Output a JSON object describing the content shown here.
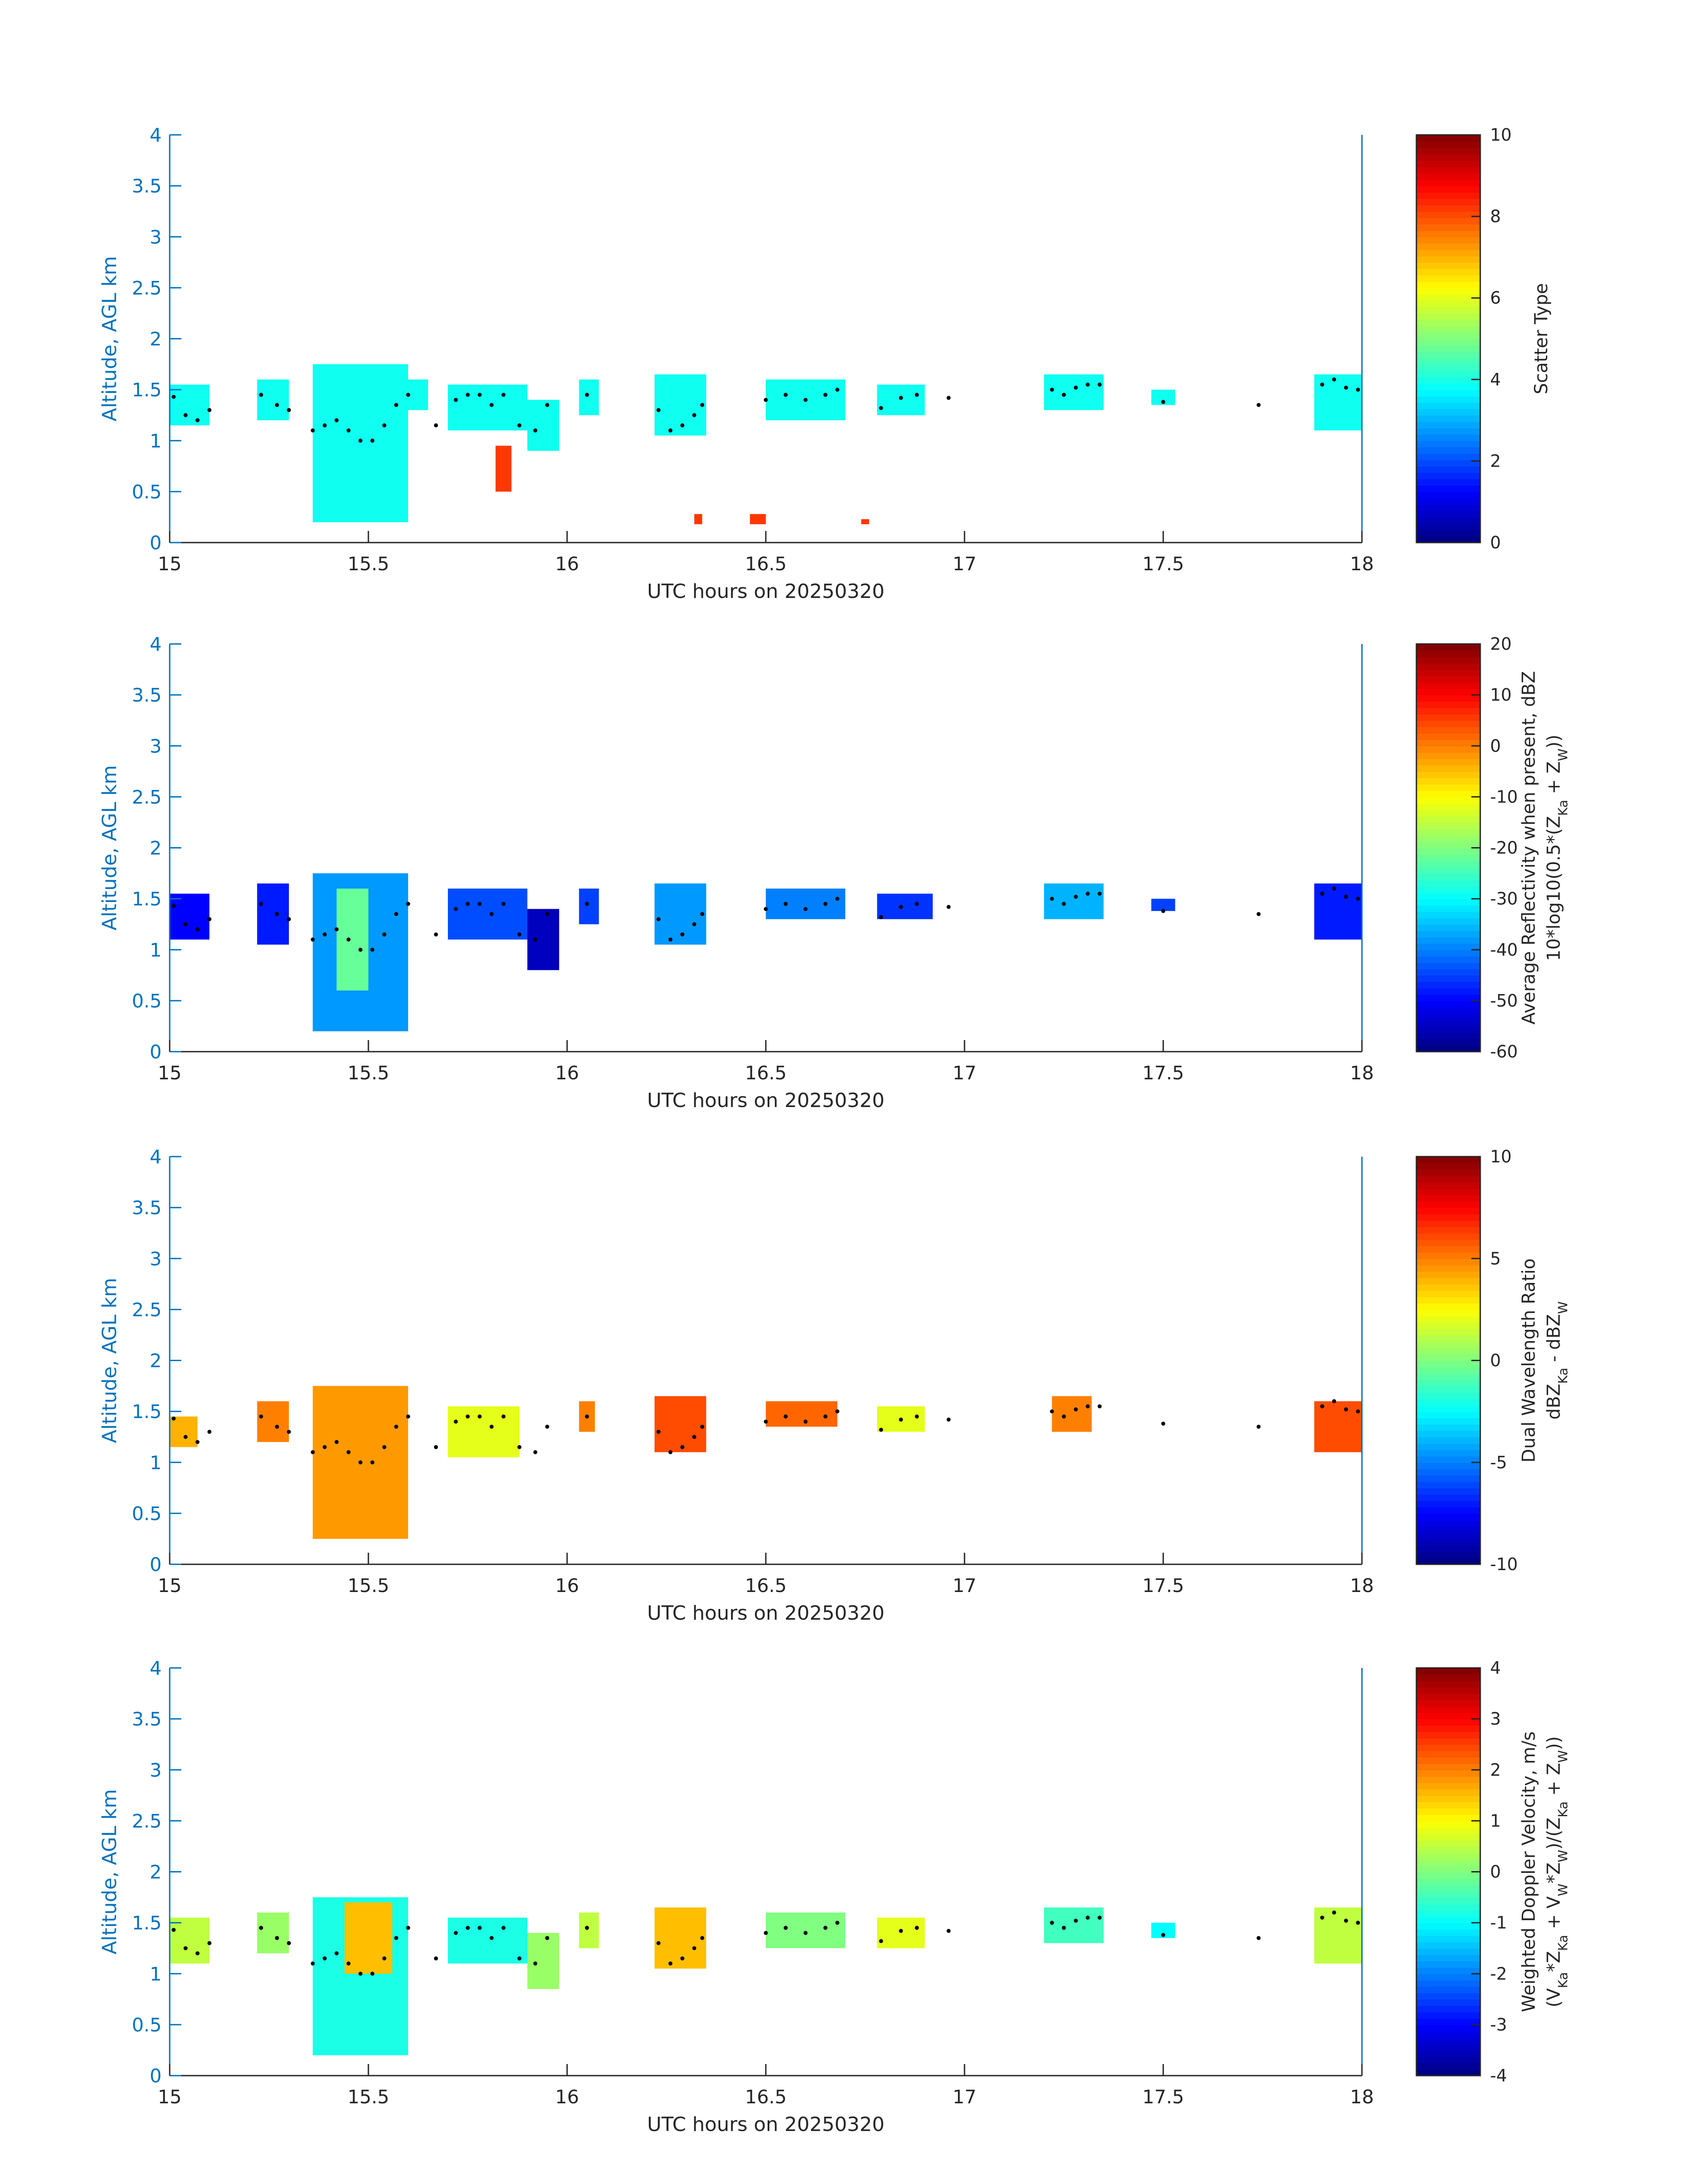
{
  "figure_note": "Four stacked radar time-height panels with colorbars",
  "chart_data": [
    {
      "type": "heatmap",
      "id": "scatter",
      "xlabel": "UTC hours on 20250320",
      "ylabel": "Altitude, AGL km",
      "xlim": [
        15,
        18
      ],
      "ylim": [
        0,
        4
      ],
      "xticks": [
        "15",
        "15.5",
        "16",
        "16.5",
        "17",
        "17.5",
        "18"
      ],
      "yticks": [
        "0",
        "0.5",
        "1",
        "1.5",
        "2",
        "2.5",
        "3",
        "3.5",
        "4"
      ],
      "colorbar": {
        "label_lines": [
          "Scatter Type"
        ],
        "min": 0,
        "max": 10,
        "ticks": [
          "0",
          "2",
          "4",
          "6",
          "8",
          "10"
        ]
      },
      "cells": [
        {
          "t0": 15.0,
          "t1": 15.1,
          "z0": 1.15,
          "z1": 1.55,
          "v": 3.9
        },
        {
          "t0": 15.22,
          "t1": 15.3,
          "z0": 1.2,
          "z1": 1.6,
          "v": 3.9
        },
        {
          "t0": 15.36,
          "t1": 15.6,
          "z0": 0.2,
          "z1": 1.75,
          "v": 3.9
        },
        {
          "t0": 15.6,
          "t1": 15.65,
          "z0": 1.3,
          "z1": 1.6,
          "v": 3.9
        },
        {
          "t0": 15.7,
          "t1": 15.9,
          "z0": 1.1,
          "z1": 1.55,
          "v": 3.9
        },
        {
          "t0": 15.9,
          "t1": 15.98,
          "z0": 0.9,
          "z1": 1.4,
          "v": 3.9
        },
        {
          "t0": 16.03,
          "t1": 16.08,
          "z0": 1.25,
          "z1": 1.6,
          "v": 3.9
        },
        {
          "t0": 16.22,
          "t1": 16.35,
          "z0": 1.05,
          "z1": 1.65,
          "v": 3.9
        },
        {
          "t0": 16.5,
          "t1": 16.7,
          "z0": 1.2,
          "z1": 1.6,
          "v": 3.9
        },
        {
          "t0": 16.78,
          "t1": 16.9,
          "z0": 1.25,
          "z1": 1.55,
          "v": 3.9
        },
        {
          "t0": 17.2,
          "t1": 17.35,
          "z0": 1.3,
          "z1": 1.65,
          "v": 3.9
        },
        {
          "t0": 17.47,
          "t1": 17.53,
          "z0": 1.35,
          "z1": 1.5,
          "v": 3.9
        },
        {
          "t0": 17.88,
          "t1": 18.0,
          "z0": 1.1,
          "z1": 1.65,
          "v": 3.9
        },
        {
          "t0": 15.82,
          "t1": 15.86,
          "z0": 0.5,
          "z1": 0.95,
          "v": 8.2
        },
        {
          "t0": 16.32,
          "t1": 16.34,
          "z0": 0.18,
          "z1": 0.28,
          "v": 8.2
        },
        {
          "t0": 16.46,
          "t1": 16.5,
          "z0": 0.18,
          "z1": 0.28,
          "v": 8.2
        },
        {
          "t0": 16.74,
          "t1": 16.76,
          "z0": 0.18,
          "z1": 0.23,
          "v": 8.2
        }
      ]
    },
    {
      "type": "heatmap",
      "id": "reflectivity",
      "xlabel": "UTC hours on 20250320",
      "ylabel": "Altitude, AGL km",
      "xlim": [
        15,
        18
      ],
      "ylim": [
        0,
        4
      ],
      "xticks": [
        "15",
        "15.5",
        "16",
        "16.5",
        "17",
        "17.5",
        "18"
      ],
      "yticks": [
        "0",
        "0.5",
        "1",
        "1.5",
        "2",
        "2.5",
        "3",
        "3.5",
        "4"
      ],
      "colorbar": {
        "label_lines": [
          "Average Reflectivity when present, dBZ",
          "10*log10(0.5*(Z_Ka + Z_W))"
        ],
        "min": -60,
        "max": 20,
        "ticks": [
          "-60",
          "-50",
          "-40",
          "-30",
          "-20",
          "-10",
          "0",
          "10",
          "20"
        ]
      },
      "cells": [
        {
          "t0": 15.0,
          "t1": 15.1,
          "z0": 1.1,
          "z1": 1.55,
          "v": -50
        },
        {
          "t0": 15.22,
          "t1": 15.3,
          "z0": 1.05,
          "z1": 1.65,
          "v": -48
        },
        {
          "t0": 15.36,
          "t1": 15.6,
          "z0": 0.2,
          "z1": 1.75,
          "v": -38
        },
        {
          "t0": 15.42,
          "t1": 15.5,
          "z0": 0.6,
          "z1": 1.6,
          "v": -22
        },
        {
          "t0": 15.7,
          "t1": 15.9,
          "z0": 1.1,
          "z1": 1.6,
          "v": -44
        },
        {
          "t0": 15.9,
          "t1": 15.98,
          "z0": 0.8,
          "z1": 1.4,
          "v": -55
        },
        {
          "t0": 16.03,
          "t1": 16.08,
          "z0": 1.25,
          "z1": 1.6,
          "v": -45
        },
        {
          "t0": 16.22,
          "t1": 16.35,
          "z0": 1.05,
          "z1": 1.65,
          "v": -38
        },
        {
          "t0": 16.5,
          "t1": 16.7,
          "z0": 1.3,
          "z1": 1.6,
          "v": -40
        },
        {
          "t0": 16.78,
          "t1": 16.92,
          "z0": 1.3,
          "z1": 1.55,
          "v": -46
        },
        {
          "t0": 17.2,
          "t1": 17.35,
          "z0": 1.3,
          "z1": 1.65,
          "v": -36
        },
        {
          "t0": 17.47,
          "t1": 17.53,
          "z0": 1.38,
          "z1": 1.5,
          "v": -45
        },
        {
          "t0": 17.88,
          "t1": 18.0,
          "z0": 1.1,
          "z1": 1.65,
          "v": -48
        }
      ]
    },
    {
      "type": "heatmap",
      "id": "dwr",
      "xlabel": "UTC hours on 20250320",
      "ylabel": "Altitude, AGL km",
      "xlim": [
        15,
        18
      ],
      "ylim": [
        0,
        4
      ],
      "xticks": [
        "15",
        "15.5",
        "16",
        "16.5",
        "17",
        "17.5",
        "18"
      ],
      "yticks": [
        "0",
        "0.5",
        "1",
        "1.5",
        "2",
        "2.5",
        "3",
        "3.5",
        "4"
      ],
      "colorbar": {
        "label_lines": [
          "Dual Wavelength Ratio",
          "dBZ_Ka - dBZ_W"
        ],
        "min": -10,
        "max": 10,
        "ticks": [
          "-10",
          "-5",
          "0",
          "5",
          "10"
        ]
      },
      "cells": [
        {
          "t0": 15.0,
          "t1": 15.07,
          "z0": 1.15,
          "z1": 1.45,
          "v": 4
        },
        {
          "t0": 15.22,
          "t1": 15.3,
          "z0": 1.2,
          "z1": 1.6,
          "v": 5
        },
        {
          "t0": 15.36,
          "t1": 15.6,
          "z0": 0.25,
          "z1": 1.75,
          "v": 4.5
        },
        {
          "t0": 15.7,
          "t1": 15.88,
          "z0": 1.05,
          "z1": 1.55,
          "v": 2
        },
        {
          "t0": 16.03,
          "t1": 16.07,
          "z0": 1.3,
          "z1": 1.6,
          "v": 5
        },
        {
          "t0": 16.22,
          "t1": 16.35,
          "z0": 1.1,
          "z1": 1.65,
          "v": 6
        },
        {
          "t0": 16.5,
          "t1": 16.68,
          "z0": 1.35,
          "z1": 1.6,
          "v": 5.5
        },
        {
          "t0": 16.78,
          "t1": 16.9,
          "z0": 1.3,
          "z1": 1.55,
          "v": 2
        },
        {
          "t0": 17.22,
          "t1": 17.32,
          "z0": 1.3,
          "z1": 1.65,
          "v": 5
        },
        {
          "t0": 17.88,
          "t1": 18.0,
          "z0": 1.1,
          "z1": 1.6,
          "v": 6
        }
      ]
    },
    {
      "type": "heatmap",
      "id": "doppler",
      "xlabel": "UTC hours on 20250320",
      "ylabel": "Altitude, AGL km",
      "xlim": [
        15,
        18
      ],
      "ylim": [
        0,
        4
      ],
      "xticks": [
        "15",
        "15.5",
        "16",
        "16.5",
        "17",
        "17.5",
        "18"
      ],
      "yticks": [
        "0",
        "0.5",
        "1",
        "1.5",
        "2",
        "2.5",
        "3",
        "3.5",
        "4"
      ],
      "colorbar": {
        "label_lines": [
          "Weighted Doppler Velocity, m/s",
          "(V_Ka*Z_Ka + V_W*Z_W)/(Z_Ka + Z_W))"
        ],
        "min": -4,
        "max": 4,
        "ticks": [
          "-4",
          "-3",
          "-2",
          "-1",
          "0",
          "1",
          "2",
          "3",
          "4"
        ]
      },
      "cells": [
        {
          "t0": 15.0,
          "t1": 15.1,
          "z0": 1.1,
          "z1": 1.55,
          "v": 0.5
        },
        {
          "t0": 15.22,
          "t1": 15.3,
          "z0": 1.2,
          "z1": 1.6,
          "v": 0.2
        },
        {
          "t0": 15.36,
          "t1": 15.6,
          "z0": 0.2,
          "z1": 1.75,
          "v": -0.8
        },
        {
          "t0": 15.44,
          "t1": 15.56,
          "z0": 1.0,
          "z1": 1.7,
          "v": 1.5
        },
        {
          "t0": 15.7,
          "t1": 15.9,
          "z0": 1.1,
          "z1": 1.55,
          "v": -0.8
        },
        {
          "t0": 15.9,
          "t1": 15.98,
          "z0": 0.85,
          "z1": 1.4,
          "v": 0.2
        },
        {
          "t0": 16.03,
          "t1": 16.08,
          "z0": 1.25,
          "z1": 1.6,
          "v": 0.5
        },
        {
          "t0": 16.22,
          "t1": 16.35,
          "z0": 1.05,
          "z1": 1.65,
          "v": 1.5
        },
        {
          "t0": 16.5,
          "t1": 16.7,
          "z0": 1.25,
          "z1": 1.6,
          "v": 0.0
        },
        {
          "t0": 16.78,
          "t1": 16.9,
          "z0": 1.25,
          "z1": 1.55,
          "v": 0.8
        },
        {
          "t0": 17.2,
          "t1": 17.35,
          "z0": 1.3,
          "z1": 1.65,
          "v": -0.5
        },
        {
          "t0": 17.47,
          "t1": 17.53,
          "z0": 1.35,
          "z1": 1.5,
          "v": -1.0
        },
        {
          "t0": 17.88,
          "t1": 18.0,
          "z0": 1.1,
          "z1": 1.65,
          "v": 0.5
        }
      ]
    }
  ],
  "cloud_base_points": [
    [
      15.01,
      1.43
    ],
    [
      15.04,
      1.25
    ],
    [
      15.07,
      1.2
    ],
    [
      15.1,
      1.3
    ],
    [
      15.23,
      1.45
    ],
    [
      15.27,
      1.35
    ],
    [
      15.3,
      1.3
    ],
    [
      15.36,
      1.1
    ],
    [
      15.39,
      1.15
    ],
    [
      15.42,
      1.2
    ],
    [
      15.45,
      1.1
    ],
    [
      15.48,
      1.0
    ],
    [
      15.51,
      1.0
    ],
    [
      15.54,
      1.15
    ],
    [
      15.57,
      1.35
    ],
    [
      15.6,
      1.45
    ],
    [
      15.67,
      1.15
    ],
    [
      15.72,
      1.4
    ],
    [
      15.75,
      1.45
    ],
    [
      15.78,
      1.45
    ],
    [
      15.81,
      1.35
    ],
    [
      15.84,
      1.45
    ],
    [
      15.88,
      1.15
    ],
    [
      15.92,
      1.1
    ],
    [
      15.95,
      1.35
    ],
    [
      16.05,
      1.45
    ],
    [
      16.23,
      1.3
    ],
    [
      16.26,
      1.1
    ],
    [
      16.29,
      1.15
    ],
    [
      16.32,
      1.25
    ],
    [
      16.34,
      1.35
    ],
    [
      16.5,
      1.4
    ],
    [
      16.55,
      1.45
    ],
    [
      16.6,
      1.4
    ],
    [
      16.65,
      1.45
    ],
    [
      16.68,
      1.5
    ],
    [
      16.79,
      1.32
    ],
    [
      16.84,
      1.42
    ],
    [
      16.88,
      1.45
    ],
    [
      16.96,
      1.42
    ],
    [
      17.22,
      1.5
    ],
    [
      17.25,
      1.45
    ],
    [
      17.28,
      1.52
    ],
    [
      17.31,
      1.55
    ],
    [
      17.34,
      1.55
    ],
    [
      17.5,
      1.38
    ],
    [
      17.74,
      1.35
    ],
    [
      17.9,
      1.55
    ],
    [
      17.93,
      1.6
    ],
    [
      17.96,
      1.52
    ],
    [
      17.99,
      1.5
    ]
  ]
}
